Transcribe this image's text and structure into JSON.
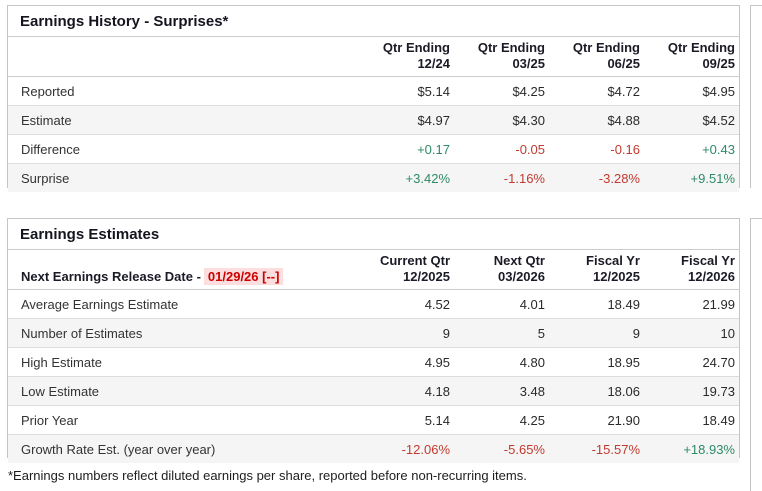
{
  "colors": {
    "positive": "#2e8a67",
    "negative": "#c23a30",
    "date_red": "#cc0000",
    "date_highlight_bg": "#fcdede"
  },
  "earnings_history": {
    "title": "Earnings History - Surprises*",
    "columns": [
      {
        "line1": "Qtr Ending",
        "line2": "12/24"
      },
      {
        "line1": "Qtr Ending",
        "line2": "03/25"
      },
      {
        "line1": "Qtr Ending",
        "line2": "06/25"
      },
      {
        "line1": "Qtr Ending",
        "line2": "09/25"
      }
    ],
    "rows": [
      {
        "label": "Reported",
        "values": [
          "$5.14",
          "$4.25",
          "$4.72",
          "$4.95"
        ]
      },
      {
        "label": "Estimate",
        "values": [
          "$4.97",
          "$4.30",
          "$4.88",
          "$4.52"
        ]
      },
      {
        "label": "Difference",
        "values": [
          "+0.17",
          "-0.05",
          "-0.16",
          "+0.43"
        ]
      },
      {
        "label": "Surprise",
        "values": [
          "+3.42%",
          "-1.16%",
          "-3.28%",
          "+9.51%"
        ]
      }
    ]
  },
  "earnings_estimates": {
    "title": "Earnings Estimates",
    "release_label": "Next Earnings Release Date -",
    "release_value": "01/29/26 [--]",
    "columns": [
      {
        "line1": "Current Qtr",
        "line2": "12/2025"
      },
      {
        "line1": "Next Qtr",
        "line2": "03/2026"
      },
      {
        "line1": "Fiscal Yr",
        "line2": "12/2025"
      },
      {
        "line1": "Fiscal Yr",
        "line2": "12/2026"
      }
    ],
    "rows": [
      {
        "label": "Average Earnings Estimate",
        "values": [
          "4.52",
          "4.01",
          "18.49",
          "21.99"
        ]
      },
      {
        "label": "Number of Estimates",
        "values": [
          "9",
          "5",
          "9",
          "10"
        ]
      },
      {
        "label": "High Estimate",
        "values": [
          "4.95",
          "4.80",
          "18.95",
          "24.70"
        ]
      },
      {
        "label": "Low Estimate",
        "values": [
          "4.18",
          "3.48",
          "18.06",
          "19.73"
        ]
      },
      {
        "label": "Prior Year",
        "values": [
          "5.14",
          "4.25",
          "21.90",
          "18.49"
        ]
      },
      {
        "label": "Growth Rate Est. (year over year)",
        "values": [
          "-12.06%",
          "-5.65%",
          "-15.57%",
          "+18.93%"
        ]
      }
    ]
  },
  "footnote": "*Earnings numbers reflect diluted earnings per share, reported before non-recurring items."
}
